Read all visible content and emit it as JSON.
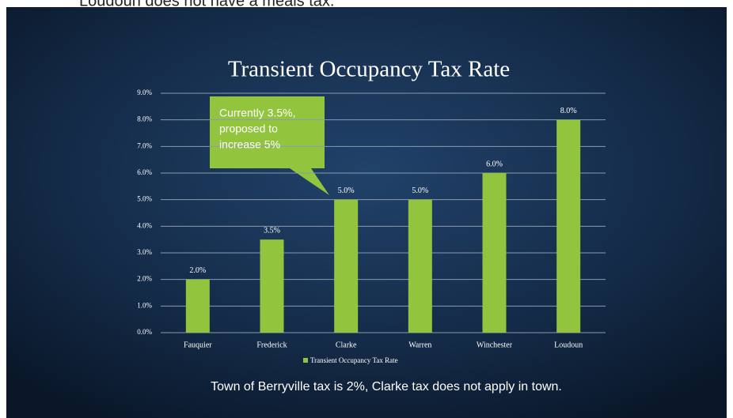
{
  "header_note": "Loudoun does not have a meals tax.",
  "chart_data": {
    "type": "bar",
    "title": "Transient Occupancy Tax Rate",
    "categories": [
      "Fauquier",
      "Frederick",
      "Clarke",
      "Warren",
      "Winchester",
      "Loudoun"
    ],
    "series": [
      {
        "name": "Transient Occupancy Tax Rate",
        "color": "#92c43e",
        "values": [
          2.0,
          3.5,
          5.0,
          5.0,
          6.0,
          8.0
        ],
        "value_labels": [
          "2.0%",
          "3.5%",
          "5.0%",
          "5.0%",
          "6.0%",
          "8.0%"
        ]
      }
    ],
    "ylim": [
      0,
      9
    ],
    "yticks": [
      {
        "value": 0,
        "label": "0.0%"
      },
      {
        "value": 1,
        "label": "1.0%"
      },
      {
        "value": 2,
        "label": "2.0%"
      },
      {
        "value": 3,
        "label": "3.0%"
      },
      {
        "value": 4,
        "label": "4.0%"
      },
      {
        "value": 5,
        "label": "5.0%"
      },
      {
        "value": 6,
        "label": "6.0%"
      },
      {
        "value": 7,
        "label": "7.0%"
      },
      {
        "value": 8,
        "label": "8.0%"
      },
      {
        "value": 9,
        "label": "9.0%"
      }
    ],
    "grid": true,
    "legend": "bottom",
    "annotation": [
      "Currently 3.5%,",
      "proposed to",
      "increase 5%"
    ],
    "footnote": "Town of Berryville tax is 2%, Clarke tax does not apply in town."
  }
}
